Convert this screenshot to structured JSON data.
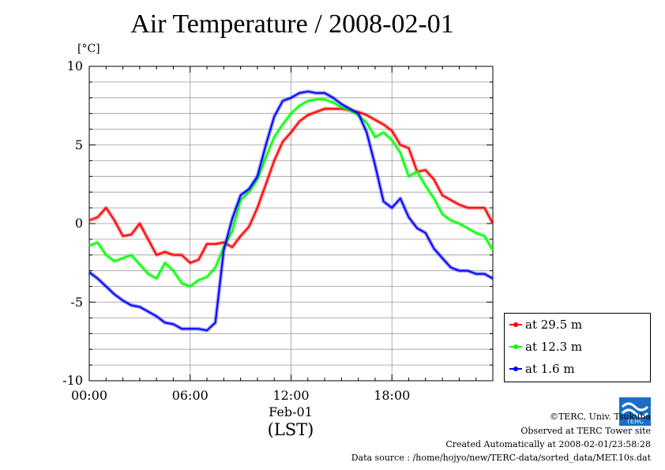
{
  "chart_data": {
    "type": "line",
    "title": "Air Temperature / 2008-02-01",
    "ylabel": "[°C]",
    "xlabel": "(LST)",
    "x_date_label": "Feb-01",
    "x_ticks": [
      "00:00",
      "06:00",
      "12:00",
      "18:00"
    ],
    "y_ticks": [
      10,
      5,
      0,
      -5,
      -10
    ],
    "ylim": [
      -10,
      10
    ],
    "xlim_hours": [
      0,
      24
    ],
    "grid": true,
    "legend_placement": "bottom-right outside",
    "x_hours": [
      0,
      0.5,
      1,
      1.5,
      2,
      2.5,
      3,
      3.5,
      4,
      4.5,
      5,
      5.5,
      6,
      6.5,
      7,
      7.5,
      8,
      8.5,
      9,
      9.5,
      10,
      10.5,
      11,
      11.5,
      12,
      12.5,
      13,
      13.5,
      14,
      14.5,
      15,
      15.5,
      16,
      16.5,
      17,
      17.5,
      18,
      18.5,
      19,
      19.5,
      20,
      20.5,
      21,
      21.5,
      22,
      22.5,
      23,
      23.5,
      24
    ],
    "series": [
      {
        "name": "at 29.5 m",
        "color": "#ff0000",
        "values": [
          0.2,
          0.4,
          1.0,
          0.2,
          -0.8,
          -0.7,
          0,
          -1.0,
          -2.0,
          -1.8,
          -2.0,
          -2.0,
          -2.5,
          -2.3,
          -1.3,
          -1.3,
          -1.2,
          -1.5,
          -0.8,
          -0.2,
          1.0,
          2.5,
          4.0,
          5.2,
          5.8,
          6.5,
          6.9,
          7.1,
          7.3,
          7.3,
          7.3,
          7.2,
          7.1,
          6.9,
          6.6,
          6.3,
          5.9,
          5.0,
          4.8,
          3.3,
          3.4,
          2.8,
          1.8,
          1.5,
          1.2,
          1.0,
          1.0,
          1.0,
          0
        ]
      },
      {
        "name": "at 12.3 m",
        "color": "#00ff00",
        "values": [
          -1.4,
          -1.2,
          -2.0,
          -2.4,
          -2.2,
          -2.0,
          -2.6,
          -3.2,
          -3.5,
          -2.5,
          -3.0,
          -3.8,
          -4.0,
          -3.6,
          -3.4,
          -2.8,
          -1.5,
          -0.5,
          1.5,
          2.0,
          2.8,
          4.2,
          5.5,
          6.3,
          7.0,
          7.5,
          7.8,
          7.9,
          7.9,
          7.7,
          7.4,
          7.2,
          6.9,
          6.4,
          5.5,
          5.8,
          5.3,
          4.5,
          3.0,
          3.3,
          2.4,
          1.6,
          0.6,
          0.2,
          0,
          -0.3,
          -0.6,
          -0.8,
          -1.7
        ]
      },
      {
        "name": "at 1.6 m",
        "color": "#0000ff",
        "values": [
          -3.1,
          -3.5,
          -4.0,
          -4.5,
          -4.9,
          -5.2,
          -5.3,
          -5.6,
          -5.9,
          -6.3,
          -6.4,
          -6.7,
          -6.7,
          -6.7,
          -6.8,
          -6.3,
          -1.7,
          0.3,
          1.8,
          2.2,
          3.0,
          5.0,
          6.8,
          7.8,
          8.0,
          8.3,
          8.4,
          8.3,
          8.3,
          8.0,
          7.6,
          7.3,
          7.0,
          5.8,
          3.7,
          1.4,
          1.0,
          1.6,
          0.4,
          -0.3,
          -0.6,
          -1.6,
          -2.2,
          -2.8,
          -3.0,
          -3.0,
          -3.2,
          -3.2,
          -3.5
        ]
      }
    ]
  },
  "footer": {
    "copyright": "©TERC, Univ. Tsukuba",
    "observed": "Observed at TERC Tower site",
    "created": "Created Automatically at 2008-02-01/23:58:28",
    "source": "Data source : /home/hojyo/new/TERC-data/sorted_data/MET.10s.dat"
  },
  "logo_text": "TERC"
}
